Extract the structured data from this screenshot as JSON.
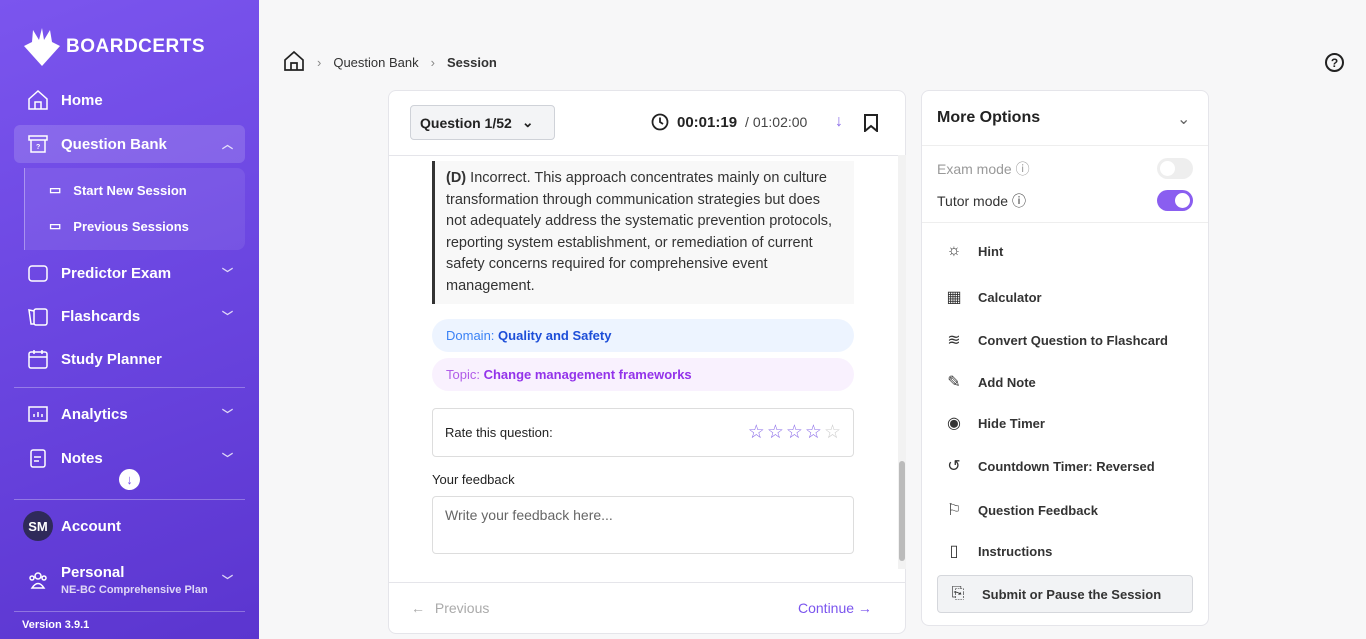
{
  "brand": {
    "name": "BOARDCERTS"
  },
  "sidebar": {
    "items": [
      {
        "label": "Home",
        "icon": "home-icon"
      },
      {
        "label": "Question Bank",
        "icon": "question-box-icon"
      },
      {
        "label": "Predictor Exam",
        "icon": "exam-icon"
      },
      {
        "label": "Flashcards",
        "icon": "flashcards-icon"
      },
      {
        "label": "Study Planner",
        "icon": "calendar-icon"
      },
      {
        "label": "Analytics",
        "icon": "chart-icon"
      },
      {
        "label": "Notes",
        "icon": "notes-icon"
      }
    ],
    "sub_items": [
      {
        "label": "Start New Session"
      },
      {
        "label": "Previous Sessions"
      }
    ],
    "account": {
      "initials": "SM",
      "label": "Account"
    },
    "plan": {
      "title": "Personal",
      "subtitle": "NE-BC Comprehensive Plan"
    },
    "version": "Version 3.9.1"
  },
  "breadcrumb": [
    "Question Bank",
    "Session"
  ],
  "question": {
    "selector": "Question 1/52",
    "timer_elapsed": "00:01:19",
    "timer_total": "/ 01:02:00",
    "explanation_label": "(D)",
    "explanation": "Incorrect. This approach concentrates mainly on culture transformation through communication strategies but does not adequately address the systematic prevention protocols, reporting system establishment, or remediation of current safety concerns required for comprehensive event management.",
    "domain_label": "Domain:",
    "domain": "Quality and Safety",
    "topic_label": "Topic:",
    "topic": "Change management frameworks",
    "rate_label": "Rate this question:",
    "rating": 4,
    "rating_max": 5,
    "feedback_label": "Your feedback",
    "feedback_placeholder": "Write your feedback here...",
    "previous": "Previous",
    "continue": "Continue"
  },
  "options": {
    "title": "More Options",
    "exam_mode": {
      "label": "Exam mode",
      "on": false
    },
    "tutor_mode": {
      "label": "Tutor mode",
      "on": true
    },
    "items": [
      {
        "label": "Hint",
        "icon": "lightbulb-icon"
      },
      {
        "label": "Calculator",
        "icon": "calculator-icon"
      },
      {
        "label": "Convert Question to Flashcard",
        "icon": "layers-icon"
      },
      {
        "label": "Add Note",
        "icon": "note-edit-icon"
      },
      {
        "label": "Hide Timer",
        "icon": "eye-icon"
      },
      {
        "label": "Countdown Timer: Reversed",
        "icon": "history-icon"
      },
      {
        "label": "Question Feedback",
        "icon": "flag-icon"
      },
      {
        "label": "Instructions",
        "icon": "clipboard-icon"
      },
      {
        "label": "Submit or Pause the Session",
        "icon": "file-export-icon"
      }
    ]
  },
  "colors": {
    "accent": "#7b55ee",
    "domain": "#1d4ed8",
    "topic": "#9333ea"
  }
}
